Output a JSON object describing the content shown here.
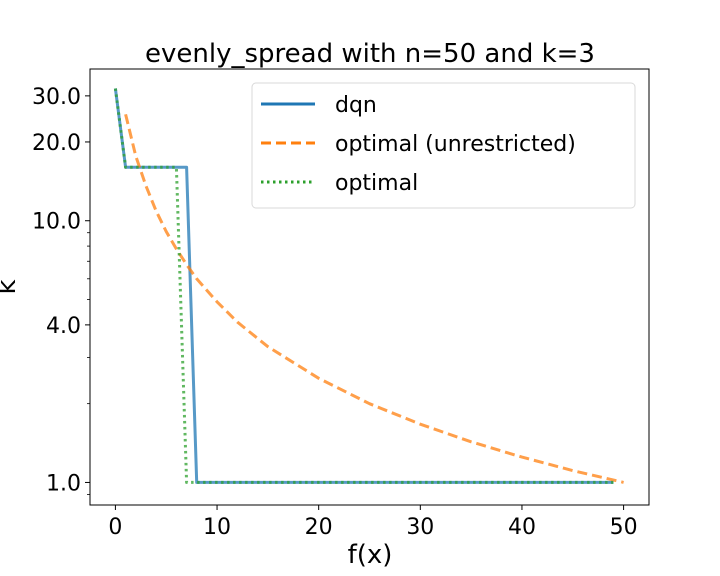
{
  "chart_data": {
    "type": "line",
    "title": "evenly_spread with n=50 and k=3",
    "xlabel": "f(x)",
    "ylabel": "k",
    "y_scale": "log",
    "xlim": [
      -2.5,
      52.5
    ],
    "ylim": [
      0.82,
      38
    ],
    "x_ticks": [
      0,
      10,
      20,
      30,
      40,
      50
    ],
    "x_tick_labels": [
      "0",
      "10",
      "20",
      "30",
      "40",
      "50"
    ],
    "y_ticks": [
      1,
      4,
      10,
      20,
      30
    ],
    "y_tick_labels": [
      "1.0",
      "4.0",
      "10.0",
      "20.0",
      "30.0"
    ],
    "grid": false,
    "legend_position": "top-right",
    "series": [
      {
        "name": "dqn",
        "color": "#1f77b4",
        "style": "solid",
        "x": [
          0,
          1,
          7,
          8,
          49
        ],
        "y": [
          32,
          16,
          16,
          1,
          1
        ]
      },
      {
        "name": "optimal (unrestricted)",
        "color": "#ff7f0e",
        "style": "dashed",
        "x": [
          1,
          2,
          3,
          4,
          5,
          6,
          7,
          8,
          10,
          12,
          15,
          20,
          25,
          30,
          35,
          40,
          45,
          50
        ],
        "y": [
          25.5,
          17.7,
          13.6,
          10.9,
          9.1,
          7.8,
          6.8,
          6.0,
          4.9,
          4.1,
          3.3,
          2.5,
          2.0,
          1.67,
          1.43,
          1.25,
          1.11,
          1.0
        ]
      },
      {
        "name": "optimal",
        "color": "#2ca02c",
        "style": "dotted",
        "x": [
          0,
          1,
          6,
          7,
          49
        ],
        "y": [
          32,
          16,
          16,
          1,
          1
        ]
      }
    ]
  }
}
